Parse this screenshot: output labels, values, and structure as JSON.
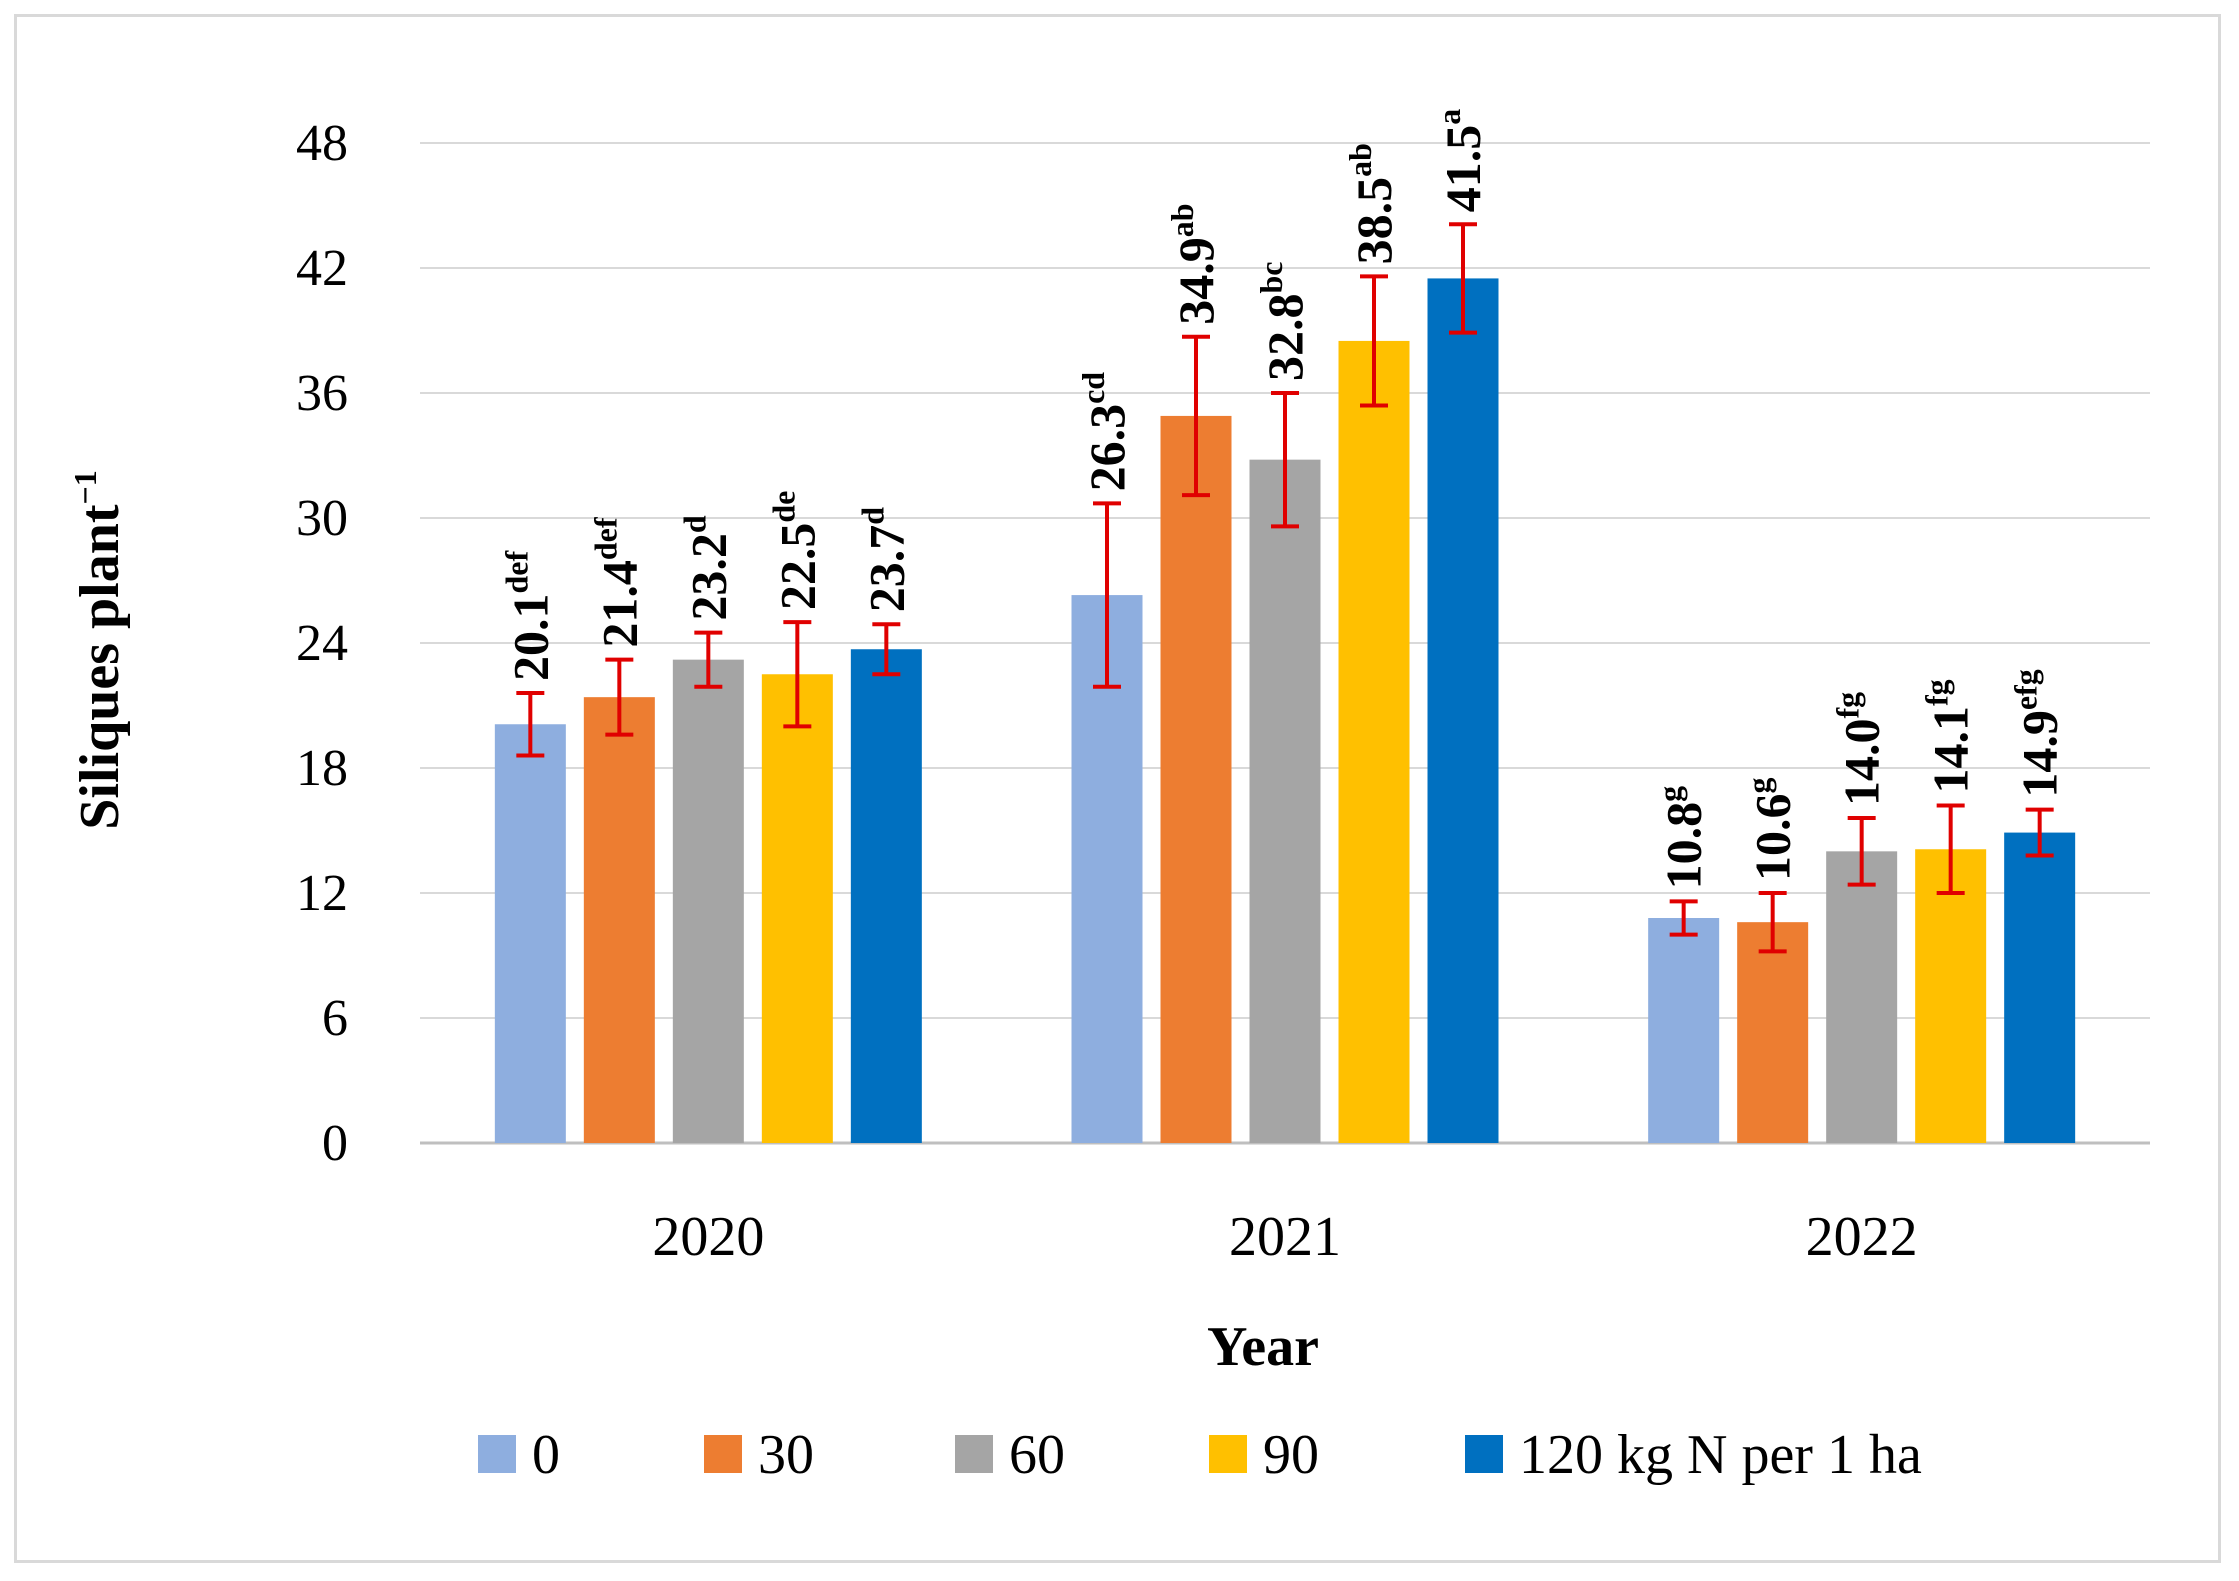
{
  "chart_data": {
    "type": "bar",
    "title": "",
    "xlabel": "Year",
    "ylabel": "Siliques plant",
    "ylabel_superscript": "−1",
    "ylim": [
      0,
      48
    ],
    "yticks": [
      0,
      6,
      12,
      18,
      24,
      30,
      36,
      42,
      48
    ],
    "grid": true,
    "legend_position": "bottom",
    "categories": [
      "2020",
      "2021",
      "2022"
    ],
    "series": [
      {
        "name": "0",
        "color": "#8eaedf",
        "values": [
          20.1,
          26.3,
          10.8
        ],
        "errors": [
          1.5,
          4.4,
          0.8
        ],
        "labels": [
          "20.1",
          "26.3",
          "10.8"
        ],
        "letters": [
          "def",
          "cd",
          "g"
        ]
      },
      {
        "name": "30",
        "color": "#ed7d31",
        "values": [
          21.4,
          34.9,
          10.6
        ],
        "errors": [
          1.8,
          3.8,
          1.4
        ],
        "labels": [
          "21.4",
          "34.9",
          "10.6"
        ],
        "letters": [
          "def",
          "ab",
          "g"
        ]
      },
      {
        "name": "60",
        "color": "#a5a5a5",
        "values": [
          23.2,
          32.8,
          14.0
        ],
        "errors": [
          1.3,
          3.2,
          1.6
        ],
        "labels": [
          "23.2",
          "32.8",
          "14.0"
        ],
        "letters": [
          "d",
          "bc",
          "fg"
        ]
      },
      {
        "name": "90",
        "color": "#ffc000",
        "values": [
          22.5,
          38.5,
          14.1
        ],
        "errors": [
          2.5,
          3.1,
          2.1
        ],
        "labels": [
          "22.5",
          "38.5",
          "14.1"
        ],
        "letters": [
          "de",
          "ab",
          "fg"
        ]
      },
      {
        "name": "120 kg N per 1 ha",
        "color": "#0070c0",
        "values": [
          23.7,
          41.5,
          14.9
        ],
        "errors": [
          1.2,
          2.6,
          1.1
        ],
        "labels": [
          "23.7",
          "41.5",
          "14.9"
        ],
        "letters": [
          "d",
          "a",
          "efg"
        ]
      }
    ],
    "error_bar_color": "#e00000",
    "grid_color": "#d9d9d9"
  }
}
